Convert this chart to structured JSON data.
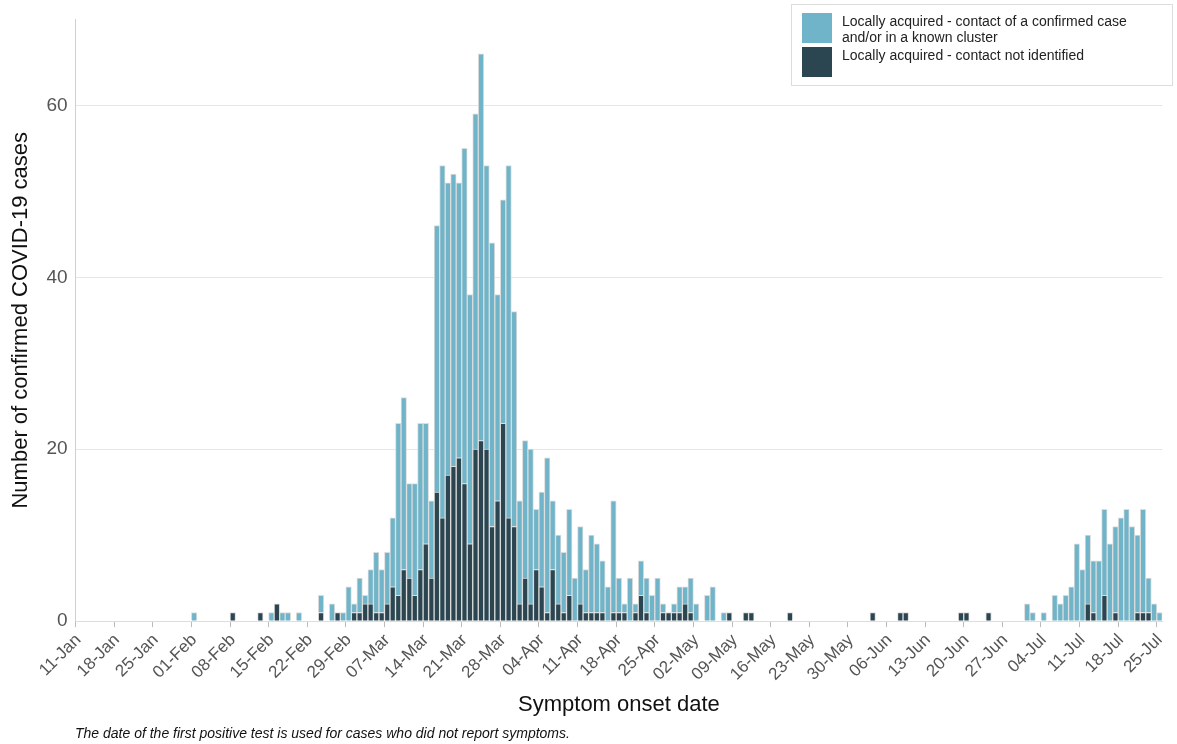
{
  "chart_data": {
    "type": "bar",
    "stacked": true,
    "xlabel": "Symptom onset date",
    "ylabel": "Number of confirmed COVID-19 cases",
    "ylim": [
      0,
      70
    ],
    "yticks": [
      0,
      20,
      40,
      60
    ],
    "grid": "y",
    "legend": "top right",
    "annotations": [
      "The date of the first positive test is used for cases who did not report symptoms."
    ],
    "categories": [
      "11-Jan",
      null,
      null,
      null,
      null,
      null,
      null,
      "18-Jan",
      null,
      null,
      null,
      null,
      null,
      null,
      "25-Jan",
      null,
      null,
      null,
      null,
      null,
      null,
      "01-Feb",
      null,
      null,
      null,
      null,
      null,
      null,
      "08-Feb",
      null,
      null,
      null,
      null,
      null,
      null,
      "15-Feb",
      null,
      null,
      null,
      null,
      null,
      null,
      "22-Feb",
      null,
      null,
      null,
      null,
      null,
      null,
      "29-Feb",
      null,
      null,
      null,
      null,
      null,
      null,
      "07-Mar",
      null,
      null,
      null,
      null,
      null,
      null,
      "14-Mar",
      null,
      null,
      null,
      null,
      null,
      null,
      "21-Mar",
      null,
      null,
      null,
      null,
      null,
      null,
      "28-Mar",
      null,
      null,
      null,
      null,
      null,
      null,
      "04-Apr",
      null,
      null,
      null,
      null,
      null,
      null,
      "11-Apr",
      null,
      null,
      null,
      null,
      null,
      null,
      "18-Apr",
      null,
      null,
      null,
      null,
      null,
      null,
      "25-Apr",
      null,
      null,
      null,
      null,
      null,
      null,
      "02-May",
      null,
      null,
      null,
      null,
      null,
      null,
      "09-May",
      null,
      null,
      null,
      null,
      null,
      null,
      "16-May",
      null,
      null,
      null,
      null,
      null,
      null,
      "23-May",
      null,
      null,
      null,
      null,
      null,
      null,
      "30-May",
      null,
      null,
      null,
      null,
      null,
      null,
      "06-Jun",
      null,
      null,
      null,
      null,
      null,
      null,
      "13-Jun",
      null,
      null,
      null,
      null,
      null,
      null,
      "20-Jun",
      null,
      null,
      null,
      null,
      null,
      null,
      "27-Jun",
      null,
      null,
      null,
      null,
      null,
      null,
      "04-Jul",
      null,
      null,
      null,
      null,
      null,
      null,
      "11-Jul",
      null,
      null,
      null,
      null,
      null,
      null,
      "18-Jul",
      null,
      null,
      null,
      null,
      null,
      null,
      "25-Jul"
    ],
    "series": [
      {
        "name": "Locally acquired - contact not identified",
        "color": "#2b4650",
        "values": [
          0,
          0,
          0,
          0,
          0,
          0,
          0,
          0,
          0,
          0,
          0,
          0,
          0,
          0,
          0,
          0,
          0,
          0,
          0,
          0,
          0,
          0,
          0,
          0,
          0,
          0,
          0,
          0,
          1,
          0,
          0,
          0,
          0,
          1,
          0,
          0,
          2,
          0,
          0,
          0,
          0,
          0,
          0,
          0,
          1,
          0,
          0,
          1,
          0,
          0,
          1,
          1,
          2,
          2,
          1,
          1,
          2,
          4,
          3,
          6,
          5,
          3,
          6,
          9,
          5,
          15,
          12,
          17,
          18,
          19,
          16,
          9,
          20,
          21,
          20,
          11,
          14,
          23,
          12,
          11,
          2,
          5,
          2,
          6,
          4,
          1,
          6,
          2,
          1,
          3,
          0,
          2,
          1,
          1,
          1,
          1,
          0,
          1,
          1,
          1,
          0,
          1,
          3,
          1,
          0,
          0,
          1,
          1,
          1,
          1,
          2,
          1,
          0,
          0,
          0,
          0,
          0,
          0,
          1,
          0,
          0,
          1,
          1,
          0,
          0,
          0,
          0,
          0,
          0,
          1,
          0,
          0,
          0,
          0,
          0,
          0,
          0,
          0,
          0,
          0,
          0,
          0,
          0,
          0,
          1,
          0,
          0,
          0,
          0,
          1,
          1,
          0,
          0,
          0,
          0,
          0,
          0,
          0,
          0,
          0,
          1,
          1,
          0,
          0,
          0,
          1,
          0,
          0,
          0,
          0,
          0,
          0,
          0,
          0,
          0,
          0,
          0,
          0,
          0,
          0,
          0,
          0,
          0,
          2,
          1,
          0,
          3,
          0,
          1,
          0,
          0,
          0,
          1,
          1,
          1,
          0,
          0
        ]
      },
      {
        "name": "Locally acquired - contact of a confirmed case and/or in a known cluster",
        "color": "#6fb4c8",
        "values": [
          0,
          0,
          0,
          0,
          0,
          0,
          0,
          0,
          0,
          0,
          0,
          0,
          0,
          0,
          0,
          0,
          0,
          0,
          0,
          0,
          0,
          1,
          0,
          0,
          0,
          0,
          0,
          0,
          0,
          0,
          0,
          0,
          0,
          0,
          0,
          1,
          0,
          1,
          1,
          0,
          1,
          0,
          0,
          0,
          2,
          0,
          2,
          0,
          1,
          4,
          1,
          4,
          1,
          4,
          7,
          5,
          6,
          8,
          20,
          20,
          11,
          13,
          17,
          14,
          9,
          31,
          41,
          34,
          34,
          32,
          39,
          29,
          39,
          45,
          33,
          33,
          24,
          26,
          41,
          25,
          12,
          16,
          18,
          7,
          11,
          18,
          8,
          8,
          7,
          10,
          5,
          9,
          5,
          9,
          8,
          6,
          4,
          13,
          4,
          1,
          5,
          1,
          4,
          4,
          3,
          5,
          1,
          0,
          1,
          3,
          2,
          4,
          2,
          0,
          3,
          4,
          0,
          1,
          0,
          0,
          0,
          0,
          0,
          0,
          0,
          0,
          0,
          0,
          0,
          0,
          0,
          0,
          0,
          0,
          0,
          0,
          0,
          0,
          0,
          0,
          0,
          0,
          0,
          0,
          0,
          0,
          0,
          0,
          0,
          0,
          0,
          0,
          0,
          0,
          0,
          0,
          0,
          0,
          0,
          0,
          0,
          0,
          0,
          0,
          0,
          0,
          0,
          0,
          0,
          0,
          0,
          0,
          2,
          1,
          0,
          1,
          0,
          3,
          2,
          3,
          4,
          9,
          6,
          8,
          6,
          7,
          10,
          9,
          10,
          12,
          13,
          11,
          9,
          12,
          4,
          2,
          1
        ]
      }
    ]
  }
}
